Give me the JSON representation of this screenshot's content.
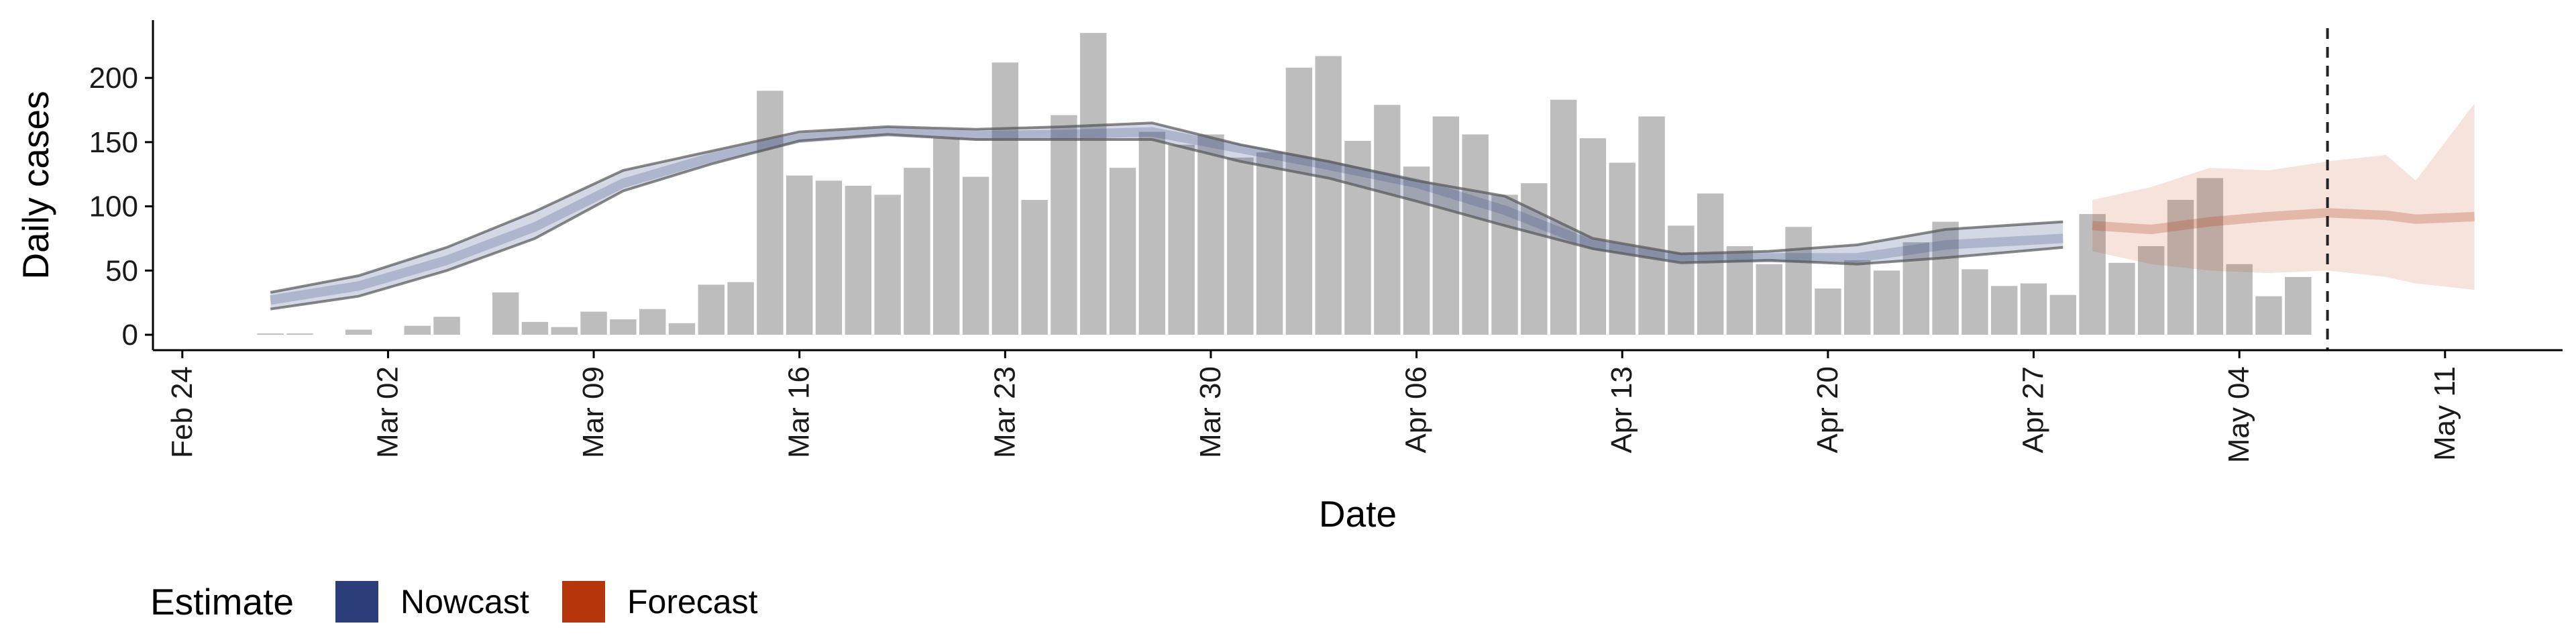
{
  "chart_data": {
    "type": "bar",
    "title": "",
    "xlabel": "Date",
    "ylabel": "Daily cases",
    "ylim": [
      -12,
      245
    ],
    "yticks": [
      0,
      50,
      100,
      150,
      200
    ],
    "grid": false,
    "x_date_range": [
      "2020-02-23",
      "2020-05-15"
    ],
    "x_ticks": [
      {
        "date": "2020-02-24",
        "label": "Feb 24"
      },
      {
        "date": "2020-03-02",
        "label": "Mar 02"
      },
      {
        "date": "2020-03-09",
        "label": "Mar 09"
      },
      {
        "date": "2020-03-16",
        "label": "Mar 16"
      },
      {
        "date": "2020-03-23",
        "label": "Mar 23"
      },
      {
        "date": "2020-03-30",
        "label": "Mar 30"
      },
      {
        "date": "2020-04-06",
        "label": "Apr 06"
      },
      {
        "date": "2020-04-13",
        "label": "Apr 13"
      },
      {
        "date": "2020-04-20",
        "label": "Apr 20"
      },
      {
        "date": "2020-04-27",
        "label": "Apr 27"
      },
      {
        "date": "2020-05-04",
        "label": "May 04"
      },
      {
        "date": "2020-05-11",
        "label": "May 11"
      }
    ],
    "reference_line": {
      "date": "2020-05-07",
      "style": "dashed"
    },
    "bars": {
      "color": "#bdbdbd",
      "x": [
        "2020-02-27",
        "2020-02-28",
        "2020-02-29",
        "2020-03-01",
        "2020-03-02",
        "2020-03-03",
        "2020-03-04",
        "2020-03-05",
        "2020-03-06",
        "2020-03-07",
        "2020-03-08",
        "2020-03-09",
        "2020-03-10",
        "2020-03-11",
        "2020-03-12",
        "2020-03-13",
        "2020-03-14",
        "2020-03-15",
        "2020-03-16",
        "2020-03-17",
        "2020-03-18",
        "2020-03-19",
        "2020-03-20",
        "2020-03-21",
        "2020-03-22",
        "2020-03-23",
        "2020-03-24",
        "2020-03-25",
        "2020-03-26",
        "2020-03-27",
        "2020-03-28",
        "2020-03-29",
        "2020-03-30",
        "2020-03-31",
        "2020-04-01",
        "2020-04-02",
        "2020-04-03",
        "2020-04-04",
        "2020-04-05",
        "2020-04-06",
        "2020-04-07",
        "2020-04-08",
        "2020-04-09",
        "2020-04-10",
        "2020-04-11",
        "2020-04-12",
        "2020-04-13",
        "2020-04-14",
        "2020-04-15",
        "2020-04-16",
        "2020-04-17",
        "2020-04-18",
        "2020-04-19",
        "2020-04-20",
        "2020-04-21",
        "2020-04-22",
        "2020-04-23",
        "2020-04-24",
        "2020-04-25",
        "2020-04-26",
        "2020-04-27",
        "2020-04-28",
        "2020-04-29",
        "2020-04-30",
        "2020-05-01",
        "2020-05-02",
        "2020-05-03",
        "2020-05-04",
        "2020-05-05",
        "2020-05-06",
        "2020-05-07"
      ],
      "values": [
        1,
        1,
        0,
        4,
        0,
        7,
        14,
        0,
        33,
        10,
        6,
        18,
        12,
        20,
        9,
        39,
        41,
        190,
        124,
        120,
        116,
        109,
        130,
        153,
        123,
        212,
        105,
        171,
        235,
        130,
        158,
        148,
        156,
        138,
        142,
        208,
        217,
        151,
        179,
        131,
        170,
        156,
        109,
        118,
        183,
        153,
        134,
        170,
        85,
        110,
        69,
        55,
        84,
        36,
        58,
        50,
        72,
        88,
        51,
        38,
        40,
        31,
        94,
        56,
        69,
        105,
        122,
        55,
        30,
        45,
        0
      ]
    },
    "series": [
      {
        "name": "Nowcast",
        "color": "#3b4f8a",
        "x": [
          "2020-02-27",
          "2020-03-01",
          "2020-03-04",
          "2020-03-07",
          "2020-03-10",
          "2020-03-13",
          "2020-03-16",
          "2020-03-19",
          "2020-03-22",
          "2020-03-25",
          "2020-03-28",
          "2020-03-31",
          "2020-04-03",
          "2020-04-06",
          "2020-04-09",
          "2020-04-12",
          "2020-04-15",
          "2020-04-18",
          "2020-04-21",
          "2020-04-24",
          "2020-04-28"
        ],
        "median": [
          27,
          38,
          58,
          84,
          118,
          138,
          153,
          158,
          155,
          156,
          158,
          145,
          132,
          118,
          97,
          70,
          60,
          60,
          60,
          70,
          75
        ],
        "lower_90": [
          20,
          30,
          50,
          75,
          112,
          133,
          151,
          156,
          152,
          152,
          152,
          135,
          122,
          104,
          85,
          67,
          56,
          58,
          55,
          60,
          68
        ],
        "upper_90": [
          33,
          46,
          68,
          96,
          128,
          143,
          158,
          162,
          160,
          162,
          165,
          148,
          135,
          120,
          108,
          75,
          63,
          65,
          70,
          82,
          88
        ]
      },
      {
        "name": "Forecast",
        "color": "#b5390a",
        "x": [
          "2020-04-29",
          "2020-05-01",
          "2020-05-03",
          "2020-05-05",
          "2020-05-07",
          "2020-05-09",
          "2020-05-10",
          "2020-05-12"
        ],
        "median": [
          85,
          82,
          88,
          92,
          95,
          93,
          90,
          92
        ],
        "lower_90": [
          65,
          55,
          50,
          48,
          50,
          45,
          40,
          35
        ],
        "upper_90": [
          105,
          115,
          130,
          128,
          135,
          140,
          120,
          180
        ]
      }
    ],
    "legend": {
      "title": "Estimate",
      "position": "bottom-left",
      "entries": [
        {
          "label": "Nowcast",
          "color": "#2c3e7a"
        },
        {
          "label": "Forecast",
          "color": "#b5360a"
        }
      ]
    }
  }
}
